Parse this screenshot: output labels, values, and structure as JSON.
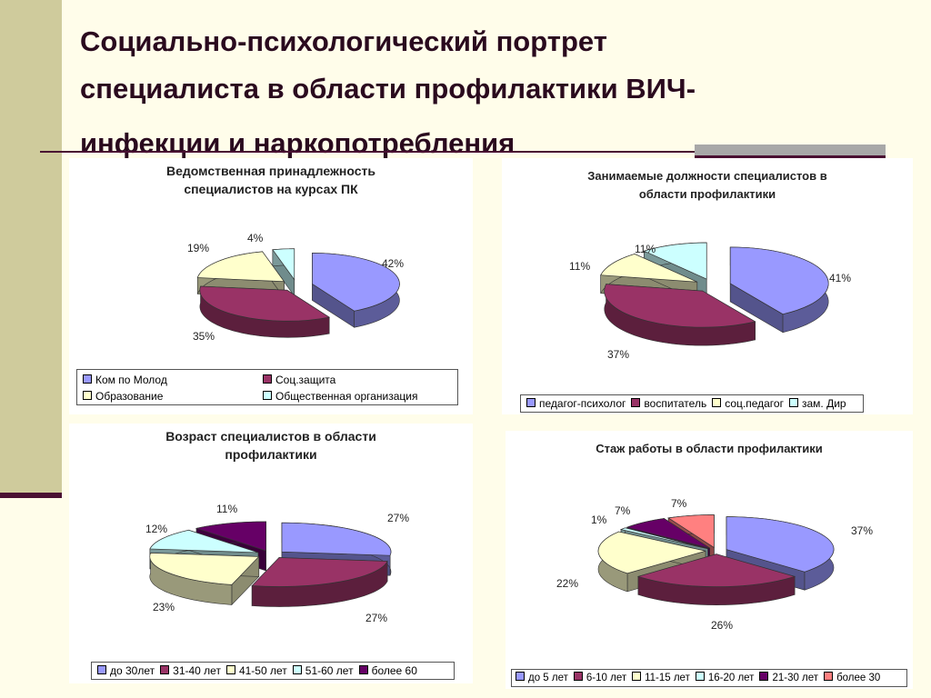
{
  "slide": {
    "title_line1": "Социально-психологический портрет",
    "title_line2": "специалиста в области профилактики ВИЧ-",
    "title_line3": "инфекции и наркопотребления"
  },
  "chart_data": [
    {
      "type": "pie",
      "title_line1": "Ведомственная принадлежность",
      "title_line2": "специалистов на курсах ПК",
      "categories": [
        "Ком по Молод",
        "Соц.защита",
        "Образование",
        "Общественная организация"
      ],
      "values": [
        42,
        35,
        19,
        4
      ],
      "labels": [
        "42%",
        "35%",
        "19%",
        "4%"
      ],
      "colors": [
        "#9999ff",
        "#993366",
        "#ffffcc",
        "#ccffff"
      ],
      "legend": "bottom"
    },
    {
      "type": "pie",
      "title_line1": "Занимаемые должности специалистов в",
      "title_line2": "области профилактики",
      "categories": [
        "педагог-психолог",
        "воспитатель",
        "соц.педагог",
        "зам. Дир"
      ],
      "values": [
        41,
        37,
        11,
        11
      ],
      "labels": [
        "41%",
        "37%",
        "11%",
        "11%"
      ],
      "colors": [
        "#9999ff",
        "#993366",
        "#ffffcc",
        "#ccffff"
      ],
      "legend": "bottom"
    },
    {
      "type": "pie",
      "title_line1": "Возраст специалистов в области",
      "title_line2": "профилактики",
      "categories": [
        "до 30лет",
        "31-40 лет",
        "41-50 лет",
        "51-60 лет",
        "более 60"
      ],
      "values": [
        27,
        27,
        23,
        12,
        11
      ],
      "labels": [
        "27%",
        "27%",
        "23%",
        "12%",
        "11%"
      ],
      "colors": [
        "#9999ff",
        "#993366",
        "#ffffcc",
        "#ccffff",
        "#660066"
      ],
      "legend": "bottom"
    },
    {
      "type": "pie",
      "title_line1": "Стаж работы в области профилактики",
      "title_line2": "",
      "categories": [
        "до 5 лет",
        "6-10 лет",
        "11-15 лет",
        "16-20 лет",
        "21-30 лет",
        "более 30"
      ],
      "values": [
        37,
        26,
        22,
        1,
        7,
        7
      ],
      "labels": [
        "37%",
        "26%",
        "22%",
        "1%",
        "7%",
        "7%"
      ],
      "colors": [
        "#9999ff",
        "#993366",
        "#ffffcc",
        "#ccffff",
        "#660066",
        "#ff8080"
      ],
      "legend": "bottom"
    }
  ]
}
